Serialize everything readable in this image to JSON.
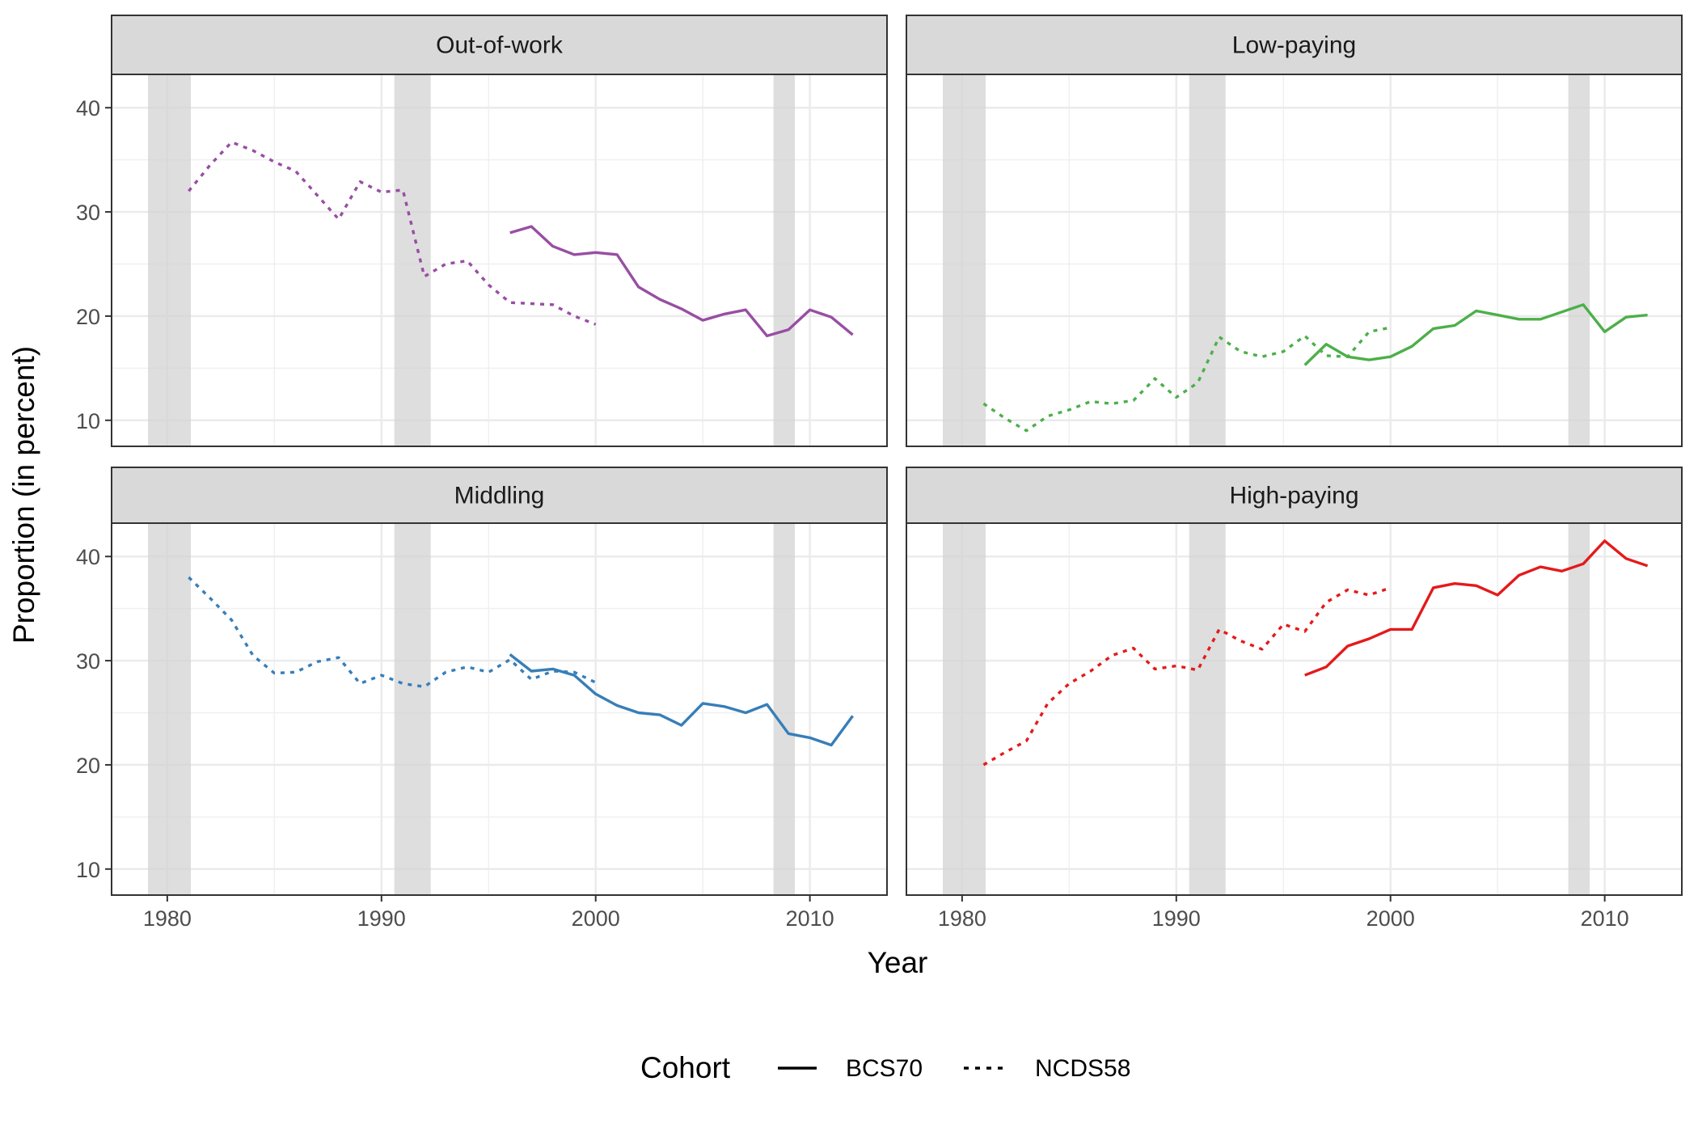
{
  "chart_data": {
    "type": "line",
    "xlabel": "Year",
    "ylabel": "Proportion (in percent)",
    "xlim": [
      1977.4,
      2013.6
    ],
    "ylim": [
      7.5,
      43.2
    ],
    "x_ticks": [
      1980,
      1990,
      2000,
      2010
    ],
    "y_ticks": [
      10,
      20,
      30,
      40
    ],
    "grid": true,
    "legend": {
      "position": "bottom",
      "title": "Cohort",
      "entries": [
        {
          "name": "BCS70",
          "linetype": "solid"
        },
        {
          "name": "NCDS58",
          "linetype": "dashed"
        }
      ]
    },
    "recession_bands": [
      [
        1979.1,
        1981.1
      ],
      [
        1990.6,
        1992.3
      ],
      [
        2008.3,
        2009.3
      ]
    ],
    "panels": [
      {
        "title": "Out-of-work",
        "color": "#984EA3",
        "series": [
          {
            "name": "NCDS58",
            "linetype": "dashed",
            "x": [
              1981,
              1982,
              1983,
              1984,
              1985,
              1986,
              1987,
              1988,
              1989,
              1990,
              1991,
              1992,
              1993,
              1994,
              1995,
              1996,
              1997,
              1998,
              1999,
              2000
            ],
            "y": [
              32.0,
              34.5,
              36.7,
              35.9,
              34.8,
              33.9,
              31.6,
              29.3,
              32.9,
              31.9,
              32.1,
              23.8,
              25.0,
              25.3,
              23.0,
              21.3,
              21.2,
              21.1,
              20.0,
              19.2
            ]
          },
          {
            "name": "BCS70",
            "linetype": "solid",
            "x": [
              1996,
              1997,
              1998,
              1999,
              2000,
              2001,
              2002,
              2003,
              2004,
              2005,
              2006,
              2007,
              2008,
              2009,
              2010,
              2011,
              2012
            ],
            "y": [
              28.0,
              28.6,
              26.7,
              25.9,
              26.1,
              25.9,
              22.8,
              21.6,
              20.7,
              19.6,
              20.2,
              20.6,
              18.1,
              18.7,
              20.6,
              19.9,
              18.2
            ]
          }
        ]
      },
      {
        "title": "Low-paying",
        "color": "#4DAF4A",
        "series": [
          {
            "name": "NCDS58",
            "linetype": "dashed",
            "x": [
              1981,
              1982,
              1983,
              1984,
              1985,
              1986,
              1987,
              1988,
              1989,
              1990,
              1991,
              1992,
              1993,
              1994,
              1995,
              1996,
              1997,
              1998,
              1999,
              2000
            ],
            "y": [
              11.6,
              10.2,
              9.0,
              10.4,
              11.0,
              11.8,
              11.6,
              11.9,
              14.0,
              12.2,
              13.6,
              18.0,
              16.6,
              16.1,
              16.6,
              18.1,
              16.2,
              16.1,
              18.5,
              18.9
            ]
          },
          {
            "name": "BCS70",
            "linetype": "solid",
            "x": [
              1996,
              1997,
              1998,
              1999,
              2000,
              2001,
              2002,
              2003,
              2004,
              2005,
              2006,
              2007,
              2008,
              2009,
              2010,
              2011,
              2012
            ],
            "y": [
              15.3,
              17.3,
              16.1,
              15.8,
              16.1,
              17.1,
              18.8,
              19.1,
              20.5,
              20.1,
              19.7,
              19.7,
              20.4,
              21.1,
              18.5,
              19.9,
              20.1
            ]
          }
        ]
      },
      {
        "title": "Middling",
        "color": "#377EB8",
        "series": [
          {
            "name": "NCDS58",
            "linetype": "dashed",
            "x": [
              1981,
              1982,
              1983,
              1984,
              1985,
              1986,
              1987,
              1988,
              1989,
              1990,
              1991,
              1992,
              1993,
              1994,
              1995,
              1996,
              1997,
              1998,
              1999,
              2000
            ],
            "y": [
              38.0,
              36.0,
              33.9,
              30.5,
              28.8,
              28.9,
              29.9,
              30.3,
              27.8,
              28.6,
              27.8,
              27.5,
              28.9,
              29.4,
              28.9,
              30.1,
              28.2,
              29.0,
              28.9,
              27.9
            ]
          },
          {
            "name": "BCS70",
            "linetype": "solid",
            "x": [
              1996,
              1997,
              1998,
              1999,
              2000,
              2001,
              2002,
              2003,
              2004,
              2005,
              2006,
              2007,
              2008,
              2009,
              2010,
              2011,
              2012
            ],
            "y": [
              30.6,
              29.0,
              29.2,
              28.6,
              26.8,
              25.7,
              25.0,
              24.8,
              23.8,
              25.9,
              25.6,
              25.0,
              25.8,
              23.0,
              22.6,
              21.9,
              24.7
            ]
          }
        ]
      },
      {
        "title": "High-paying",
        "color": "#E41A1C",
        "series": [
          {
            "name": "NCDS58",
            "linetype": "dashed",
            "x": [
              1981,
              1982,
              1983,
              1984,
              1985,
              1986,
              1987,
              1988,
              1989,
              1990,
              1991,
              1992,
              1993,
              1994,
              1995,
              1996,
              1997,
              1998,
              1999,
              2000
            ],
            "y": [
              20.0,
              21.2,
              22.3,
              25.9,
              27.8,
              29.0,
              30.5,
              31.2,
              29.2,
              29.5,
              29.1,
              33.0,
              31.9,
              31.1,
              33.5,
              32.8,
              35.6,
              36.8,
              36.3,
              37.0
            ]
          },
          {
            "name": "BCS70",
            "linetype": "solid",
            "x": [
              1996,
              1997,
              1998,
              1999,
              2000,
              2001,
              2002,
              2003,
              2004,
              2005,
              2006,
              2007,
              2008,
              2009,
              2010,
              2011,
              2012
            ],
            "y": [
              28.6,
              29.4,
              31.4,
              32.1,
              33.0,
              33.0,
              37.0,
              37.4,
              37.2,
              36.3,
              38.2,
              39.0,
              38.6,
              39.3,
              41.5,
              39.8,
              39.1
            ]
          }
        ]
      }
    ]
  }
}
